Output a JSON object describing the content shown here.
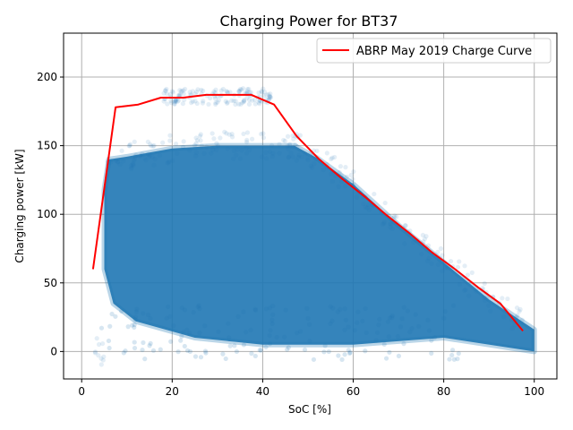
{
  "chart_data": {
    "type": "scatter",
    "title": "Charging Power for BT37",
    "xlabel": "SoC [%]",
    "ylabel": "Charging power [kW]",
    "xlim": [
      -4,
      105
    ],
    "ylim": [
      -20,
      232
    ],
    "x_ticks": [
      0,
      20,
      40,
      60,
      80,
      100
    ],
    "y_ticks": [
      0,
      50,
      100,
      150,
      200
    ],
    "grid": true,
    "legend_position": "top-right",
    "scatter_color": "#1f77b4",
    "scatter_envelope": {
      "upper": [
        [
          5,
          118
        ],
        [
          6,
          140
        ],
        [
          10,
          142
        ],
        [
          15,
          145
        ],
        [
          20,
          148
        ],
        [
          30,
          150
        ],
        [
          47,
          150
        ],
        [
          52,
          141
        ],
        [
          60,
          122
        ],
        [
          70,
          92
        ],
        [
          80,
          65
        ],
        [
          90,
          38
        ],
        [
          100,
          16
        ]
      ],
      "lower": [
        [
          100,
          0
        ],
        [
          80,
          10
        ],
        [
          60,
          5
        ],
        [
          40,
          5
        ],
        [
          25,
          10
        ],
        [
          12,
          22
        ],
        [
          7,
          35
        ],
        [
          5,
          60
        ]
      ],
      "outlier_cluster": [
        [
          18,
          186
        ],
        [
          25,
          188
        ],
        [
          35,
          191
        ],
        [
          42,
          186
        ]
      ]
    },
    "series": [
      {
        "name": "ABRP May 2019 Charge Curve",
        "color": "#ff0000",
        "x": [
          2.5,
          7.5,
          12.5,
          17.5,
          22.5,
          27.5,
          32.5,
          37.5,
          42.5,
          47.5,
          52.5,
          57.5,
          62.5,
          67.5,
          72.5,
          77.5,
          82.5,
          87.5,
          92.5,
          97.5
        ],
        "y": [
          60,
          178,
          180,
          185,
          185,
          187,
          187,
          187,
          180,
          157,
          140,
          126,
          113,
          99,
          86,
          72,
          60,
          47,
          35,
          15
        ]
      }
    ]
  }
}
